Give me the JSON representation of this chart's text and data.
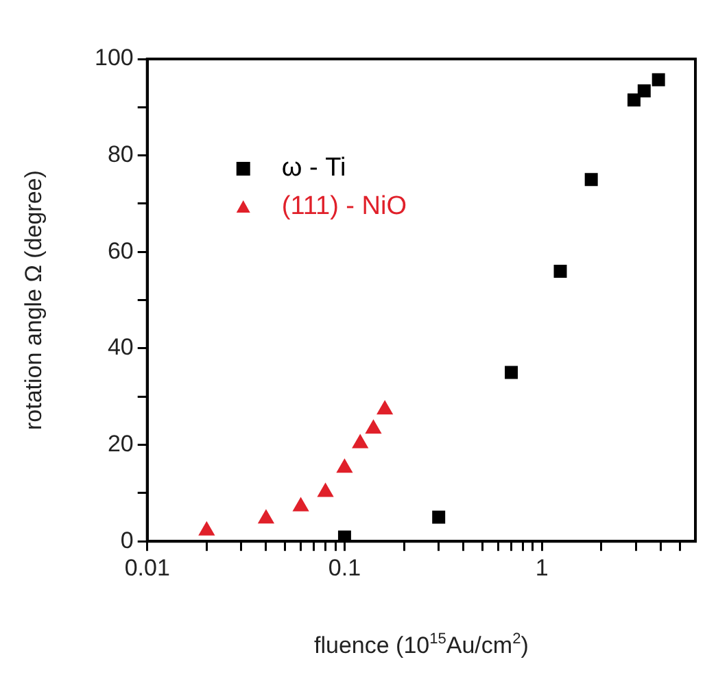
{
  "chart_data": {
    "type": "scatter",
    "xlabel": "fluence (10$^{15}$Au/cm$^{2}$)",
    "ylabel": "rotation angle Ω (degree)",
    "log": "x",
    "xlim": [
      0.01,
      6
    ],
    "xticks": [
      0.01,
      {
        "value": 0.02,
        "label": null
      },
      {
        "value": 0.03,
        "label": null
      },
      {
        "value": 0.04,
        "label": null
      },
      {
        "value": 0.05,
        "label": null
      },
      {
        "value": 0.06,
        "label": null
      },
      {
        "value": 0.07,
        "label": null
      },
      {
        "value": 0.08,
        "label": null
      },
      {
        "value": 0.09,
        "label": null
      },
      0.1,
      {
        "value": 0.2,
        "label": null
      },
      {
        "value": 0.3,
        "label": null
      },
      {
        "value": 0.4,
        "label": null
      },
      {
        "value": 0.5,
        "label": null
      },
      {
        "value": 0.6,
        "label": null
      },
      {
        "value": 0.7,
        "label": null
      },
      {
        "value": 0.8,
        "label": null
      },
      {
        "value": 0.9,
        "label": null
      },
      1,
      {
        "value": 2,
        "label": null
      },
      {
        "value": 3,
        "label": null
      },
      {
        "value": 4,
        "label": null
      },
      {
        "value": 5,
        "label": null
      }
    ],
    "ylim": [
      0,
      100
    ],
    "yticks": [
      0,
      {
        "value": 10,
        "label": null
      },
      20,
      {
        "value": 30,
        "label": null
      },
      40,
      {
        "value": 50,
        "label": null
      },
      60,
      {
        "value": 70,
        "label": null
      },
      80,
      {
        "value": 90,
        "label": null
      },
      100
    ],
    "grid": false,
    "legend": "top left",
    "series": [
      {
        "name": "ω - Ti",
        "color": "#000000",
        "marker": "square",
        "x": [
          0.1,
          0.3,
          0.7,
          1.24,
          1.78,
          2.93,
          3.3,
          3.9
        ],
        "values": [
          0.9,
          5,
          35,
          56,
          75,
          91.5,
          93.4,
          95.7
        ]
      },
      {
        "name": "(111) - NiO",
        "color": "#e0202a",
        "marker": "triangle",
        "x": [
          0.02,
          0.04,
          0.06,
          0.08,
          0.1,
          0.12,
          0.14,
          0.16
        ],
        "values": [
          2.2,
          4.7,
          7.2,
          10.2,
          15.2,
          20.3,
          23.3,
          27.3
        ]
      }
    ]
  }
}
